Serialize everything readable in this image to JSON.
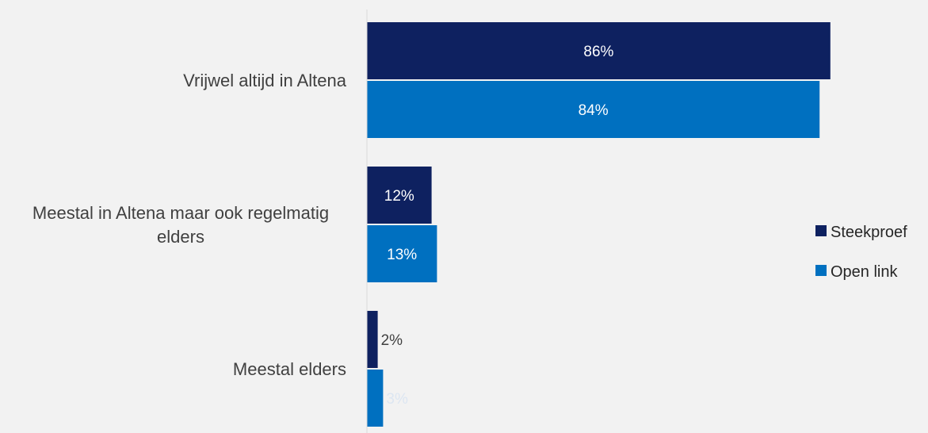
{
  "chart_data": {
    "type": "bar",
    "orientation": "horizontal",
    "title": "",
    "xlabel": "",
    "ylabel": "",
    "categories": [
      [
        "Vrijwel altijd in Altena"
      ],
      [
        "Meestal in Altena maar ook regelmatig",
        "elders"
      ],
      [
        "Meestal elders"
      ]
    ],
    "series": [
      {
        "name": "Steekproef",
        "color": "#0e2160",
        "values": [
          86,
          12,
          2
        ],
        "labels": [
          "86%",
          "12%",
          "2%"
        ]
      },
      {
        "name": "Open link",
        "color": "#0070c0",
        "values": [
          84,
          13,
          3
        ],
        "labels": [
          "84%",
          "13%",
          "3%"
        ]
      }
    ],
    "xlim": [
      0,
      100
    ],
    "grid": false,
    "legend_position": "right"
  }
}
